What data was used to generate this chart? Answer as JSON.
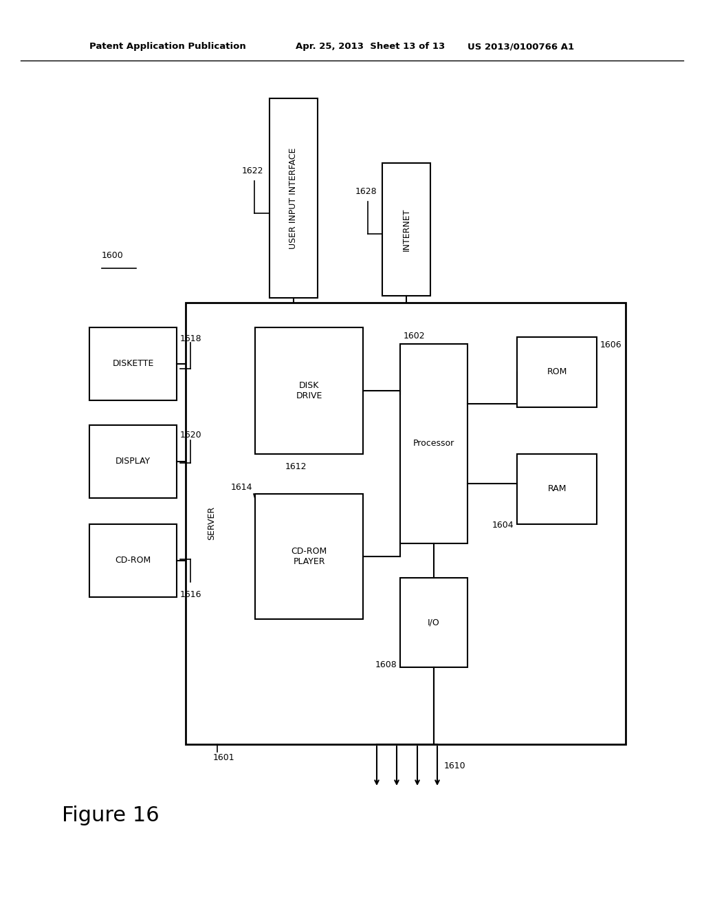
{
  "header_left": "Patent Application Publication",
  "header_mid": "Apr. 25, 2013  Sheet 13 of 13",
  "header_right": "US 2013/0100766 A1",
  "figure_label": "Figure 16",
  "fig_number": "1600",
  "bg_color": "#ffffff",
  "line_color": "#000000"
}
